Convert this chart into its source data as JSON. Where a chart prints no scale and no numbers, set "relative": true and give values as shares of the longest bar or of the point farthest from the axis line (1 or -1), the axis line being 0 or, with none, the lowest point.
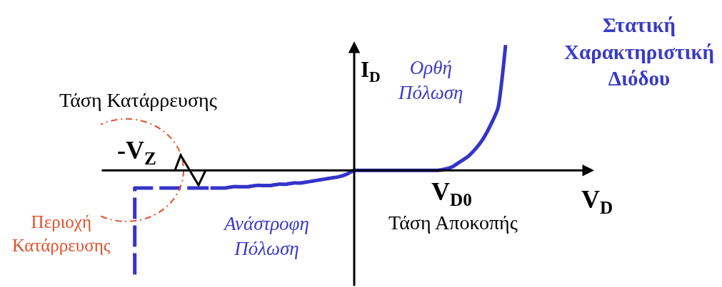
{
  "chart_data": {
    "type": "line",
    "relative": true,
    "title": "Στατική\nΧαρακτηριστική\nΔιόδου",
    "xlabel": "V$_{D}$",
    "ylabel": "I$_{D}$",
    "categories": [
      null,
      null,
      null,
      null,
      null,
      null,
      null,
      null,
      null,
      null,
      null,
      null,
      null,
      null,
      null,
      null,
      null,
      null,
      null,
      null,
      null,
      null,
      null,
      null,
      null,
      null,
      null,
      null,
      null,
      null,
      null,
      null,
      null,
      null,
      null,
      null,
      null,
      null,
      null,
      null,
      null,
      null,
      null,
      null,
      null,
      null,
      null,
      null,
      null,
      null
    ],
    "series": [
      {
        "type": "step",
        "color": "#3434c9",
        "line_style": "dashed",
        "values": [
          -0.83,
          -0.14,
          -0.14,
          -0.14,
          -0.14,
          -0.14,
          -0.14,
          -0.14,
          -0.14,
          -0.14,
          -0.14,
          null,
          null,
          null,
          null,
          null,
          null,
          null,
          null,
          null,
          null,
          null,
          null,
          null,
          null,
          null,
          null,
          null,
          null,
          null,
          null,
          null,
          null,
          null,
          null,
          null,
          null,
          null,
          null,
          null,
          null,
          null,
          null,
          null,
          null,
          null,
          null,
          null,
          null,
          null
        ]
      },
      {
        "color": "#3434c9",
        "line_style": "solid",
        "values": [
          null,
          null,
          null,
          null,
          null,
          null,
          null,
          null,
          null,
          null,
          -0.14,
          -0.14,
          -0.14,
          -0.13,
          -0.13,
          -0.13,
          -0.12,
          -0.12,
          -0.12,
          -0.11,
          -0.11,
          -0.1,
          -0.1,
          -0.09,
          -0.08,
          -0.07,
          -0.06,
          -0.05,
          -0.03,
          0,
          0,
          0,
          0,
          0,
          0,
          0,
          0,
          0,
          0,
          0,
          0,
          0.01,
          0.03,
          0.07,
          0.11,
          0.17,
          0.25,
          0.36,
          0.5,
          1.0
        ]
      }
    ],
    "annotations": [
      "Τάση Κατάρρευσης",
      "-V$_{Z}$",
      "Περιοχή\nΚατάρρευσης",
      "Ορθή\nΠόλωση",
      "Ανάστροφη\nΠόλωση",
      "V$_{D0}$",
      "Τάση Αποκοπής"
    ]
  }
}
